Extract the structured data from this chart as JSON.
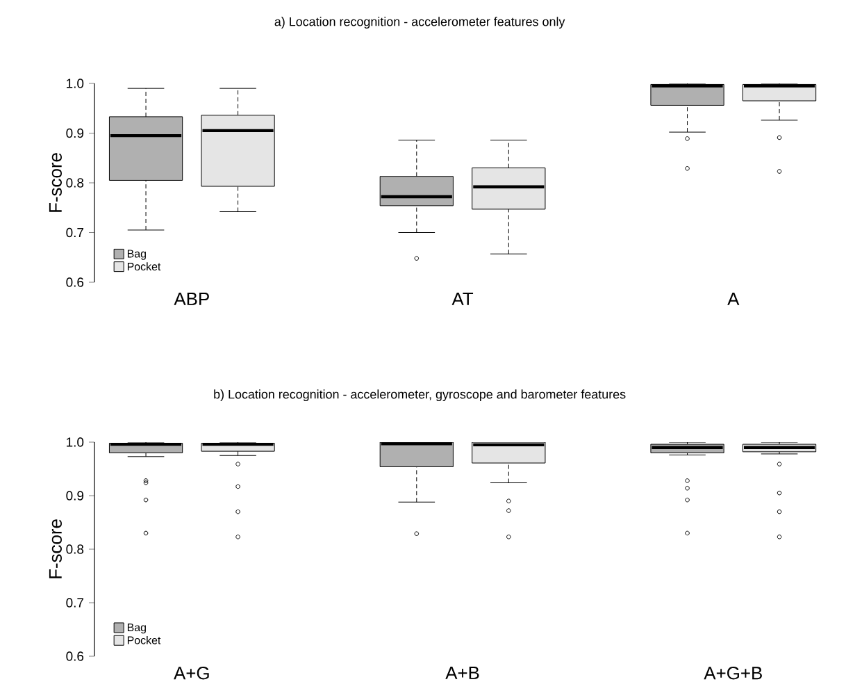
{
  "chart_data": [
    {
      "type": "box",
      "title": "a) Location recognition - accelerometer features only",
      "ylabel": "F-score",
      "categories": [
        "ABP",
        "AT",
        "A"
      ],
      "ylim": [
        0.6,
        1.0
      ],
      "yticks": [
        {
          "value": 0.6,
          "label": "0.6"
        },
        {
          "value": 0.7,
          "label": "0.7"
        },
        {
          "value": 0.8,
          "label": "0.8"
        },
        {
          "value": 0.9,
          "label": "0.9"
        },
        {
          "value": 1.0,
          "label": "1.0"
        }
      ],
      "legend": "bottom left",
      "series": [
        {
          "name": "Bag",
          "color": "#b0b0b0",
          "boxes": [
            {
              "low": 0.705,
              "q1": 0.805,
              "median": 0.895,
              "q3": 0.933,
              "high": 0.99
            },
            {
              "low": 0.7,
              "q1": 0.754,
              "median": 0.772,
              "q3": 0.813,
              "high": 0.886,
              "outliers": [
                0.648
              ]
            },
            {
              "low": 0.902,
              "q1": 0.956,
              "median": 0.995,
              "q3": 0.998,
              "high": 1.0,
              "outliers": [
                0.889,
                0.829
              ]
            }
          ]
        },
        {
          "name": "Pocket",
          "color": "#e5e5e5",
          "boxes": [
            {
              "low": 0.742,
              "q1": 0.793,
              "median": 0.905,
              "q3": 0.936,
              "high": 0.99
            },
            {
              "low": 0.657,
              "q1": 0.747,
              "median": 0.792,
              "q3": 0.83,
              "high": 0.886
            },
            {
              "low": 0.926,
              "q1": 0.965,
              "median": 0.995,
              "q3": 0.998,
              "high": 1.0,
              "outliers": [
                0.891,
                0.823
              ]
            }
          ]
        }
      ]
    },
    {
      "type": "box",
      "title": "b) Location recognition - accelerometer, gyroscope and barometer features",
      "ylabel": "F-score",
      "categories": [
        "A+G",
        "A+B",
        "A+G+B"
      ],
      "ylim": [
        0.6,
        1.0
      ],
      "yticks": [
        {
          "value": 0.6,
          "label": "0.6"
        },
        {
          "value": 0.7,
          "label": "0.7"
        },
        {
          "value": 0.8,
          "label": "0.8"
        },
        {
          "value": 0.9,
          "label": "0.9"
        },
        {
          "value": 1.0,
          "label": "1.0"
        }
      ],
      "legend": "bottom left",
      "series": [
        {
          "name": "Bag",
          "color": "#b0b0b0",
          "boxes": [
            {
              "low": 0.973,
              "q1": 0.98,
              "median": 0.996,
              "q3": 0.998,
              "high": 1.0,
              "outliers": [
                0.928,
                0.924,
                0.892,
                0.83
              ]
            },
            {
              "low": 0.888,
              "q1": 0.954,
              "median": 0.997,
              "q3": 1.0,
              "high": 1.0,
              "outliers": [
                0.829
              ]
            },
            {
              "low": 0.976,
              "q1": 0.98,
              "median": 0.99,
              "q3": 0.996,
              "high": 1.0,
              "outliers": [
                0.928,
                0.914,
                0.892,
                0.83
              ]
            }
          ]
        },
        {
          "name": "Pocket",
          "color": "#e5e5e5",
          "boxes": [
            {
              "low": 0.975,
              "q1": 0.983,
              "median": 0.996,
              "q3": 0.998,
              "high": 1.0,
              "outliers": [
                0.959,
                0.917,
                0.87,
                0.823
              ]
            },
            {
              "low": 0.924,
              "q1": 0.961,
              "median": 0.995,
              "q3": 1.0,
              "high": 1.0,
              "outliers": [
                0.89,
                0.872,
                0.823
              ]
            },
            {
              "low": 0.978,
              "q1": 0.982,
              "median": 0.99,
              "q3": 0.996,
              "high": 1.0,
              "outliers": [
                0.959,
                0.905,
                0.87,
                0.823
              ]
            }
          ]
        }
      ]
    }
  ]
}
